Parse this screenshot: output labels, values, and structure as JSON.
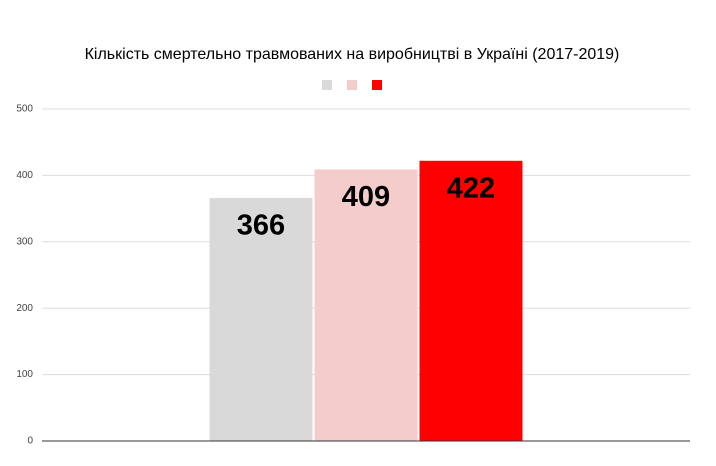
{
  "chart_data": {
    "type": "bar",
    "title": "Кількість смертельно травмованих на виробництві в Україні (2017-2019)",
    "categories": [
      null
    ],
    "series": [
      {
        "color": "#d9d9d9",
        "values": [
          366
        ]
      },
      {
        "color": "#f4cccc",
        "values": [
          409
        ]
      },
      {
        "color": "#ff0000",
        "values": [
          422
        ]
      }
    ],
    "ylim": [
      0,
      500
    ],
    "yticks": [
      0,
      100,
      200,
      300,
      400,
      500
    ],
    "grid": true
  }
}
